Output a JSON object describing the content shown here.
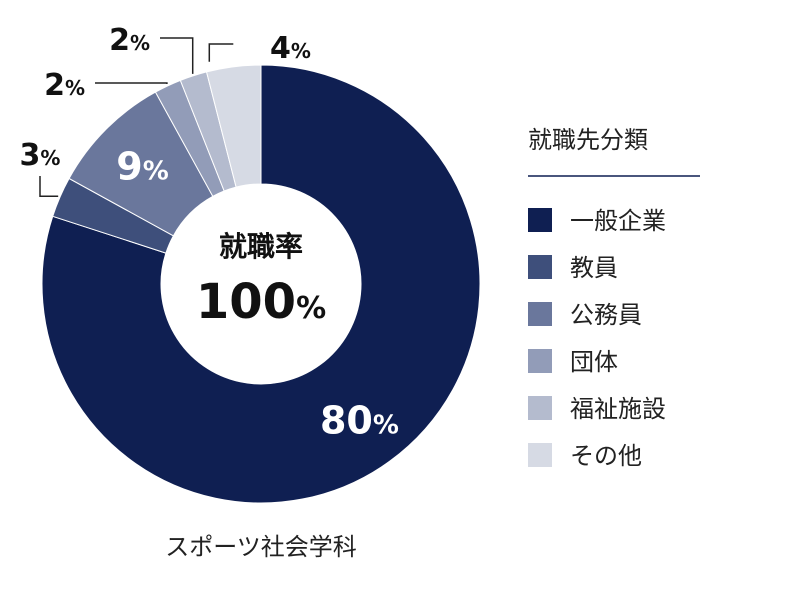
{
  "chart_data": {
    "type": "pie",
    "donut": true,
    "categories": [
      "一般企業",
      "教員",
      "公務員",
      "団体",
      "福祉施設",
      "その他"
    ],
    "values": [
      80,
      3,
      9,
      2,
      2,
      4
    ],
    "labels": [
      "80%",
      "3%",
      "9%",
      "2%",
      "2%",
      "4%"
    ],
    "colors": [
      "#0f1f52",
      "#3e4f7b",
      "#6a779c",
      "#929cb8",
      "#b4bbce",
      "#d6dae4"
    ],
    "center_title": "就職率",
    "center_value": "100%",
    "legend_title": "就職先分類",
    "legend_position": "right",
    "caption": "スポーツ社会学科"
  }
}
